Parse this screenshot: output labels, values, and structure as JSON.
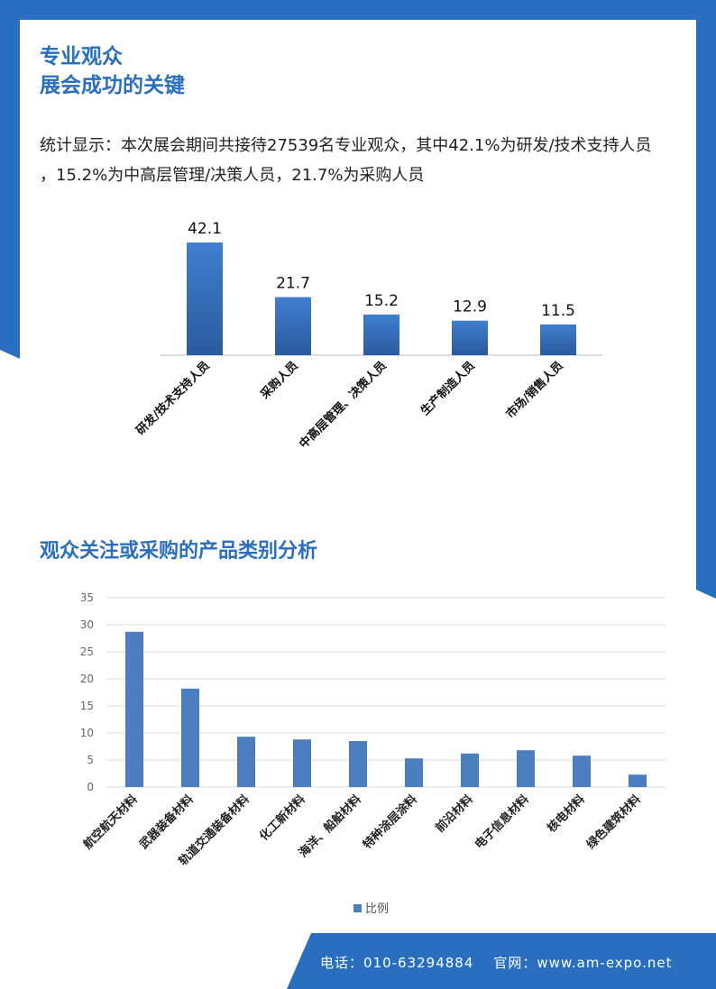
{
  "header": {
    "title_line1": "专业观众",
    "title_line2": "展会成功的关键"
  },
  "intro": {
    "text": "统计显示：本次展会期间共接待27539名专业观众，其中42.1%为研发/技术支持人员 ，15.2%为中高层管理/决策人员，21.7%为采购人员"
  },
  "section2": {
    "title": "观众关注或采购的产品类别分析"
  },
  "footer": {
    "phone": "电话：010-63294884",
    "website": "官网：www.am-expo.net"
  },
  "colors": {
    "brand_blue": "#2a6fbf",
    "bar_top": "#3f7fcf",
    "bar_bottom": "#2a5a9e",
    "bar_flat": "#4a7ebf"
  },
  "chart_data": [
    {
      "type": "bar",
      "categories": [
        "研发/技术支持人员",
        "采购人员",
        "中高层管理、决策人员",
        "生产制造人员",
        "市场/销售人员"
      ],
      "values": [
        42.1,
        21.7,
        15.2,
        12.9,
        11.5
      ],
      "data_labels": [
        "42.1",
        "21.7",
        "15.2",
        "12.9",
        "11.5"
      ],
      "ylim": [
        0,
        42.1
      ],
      "grid": false
    },
    {
      "type": "bar",
      "categories": [
        "航空航天材料",
        "武器装备材料",
        "轨道交通装备材料",
        "化工新材料",
        "海洋、船舶材料",
        "特种涂层涂料",
        "前沿材料",
        "电子信息材料",
        "核电材料",
        "绿色建筑材料"
      ],
      "series": [
        {
          "name": "比例",
          "values": [
            28.7,
            18.2,
            9.3,
            8.8,
            8.5,
            5.3,
            6.2,
            6.8,
            5.8,
            2.3
          ]
        }
      ],
      "yticks": [
        "35",
        "30",
        "25",
        "20",
        "15",
        "10",
        "5",
        "0"
      ],
      "ylim": [
        0,
        35
      ],
      "grid": true,
      "legend": "bottom"
    }
  ]
}
